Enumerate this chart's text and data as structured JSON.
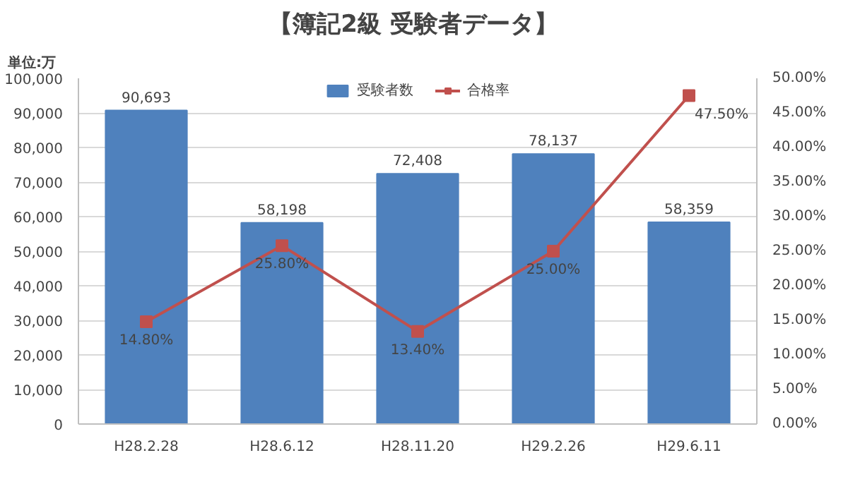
{
  "chart_data": {
    "type": "bar",
    "title": "【簿記2級  受験者データ】",
    "ylabel": "単位:万",
    "categories": [
      "H28.2.28",
      "H28.6.12",
      "H28.11.20",
      "H29.2.26",
      "H29.6.11"
    ],
    "series": [
      {
        "name": "受験者数",
        "color": "#4f81bd",
        "values": [
          90693,
          58198,
          72408,
          78137,
          58359
        ],
        "value_labels": [
          "90,693",
          "58,198",
          "72,408",
          "78,137",
          "58,359"
        ]
      },
      {
        "name": "合格率",
        "type": "line",
        "axis": "y2",
        "color": "#c0504d",
        "marker": "square",
        "values": [
          14.8,
          25.8,
          13.4,
          25.0,
          47.5
        ],
        "value_labels": [
          "14.80%",
          "25.80%",
          "13.40%",
          "25.00%",
          "47.50%"
        ]
      }
    ],
    "ylim": [
      0,
      100000
    ],
    "yticks": [
      {
        "value": 0,
        "label": "0"
      },
      {
        "value": 10000,
        "label": "10,000"
      },
      {
        "value": 20000,
        "label": "20,000"
      },
      {
        "value": 30000,
        "label": "30,000"
      },
      {
        "value": 40000,
        "label": "40,000"
      },
      {
        "value": 50000,
        "label": "50,000"
      },
      {
        "value": 60000,
        "label": "60,000"
      },
      {
        "value": 70000,
        "label": "70,000"
      },
      {
        "value": 80000,
        "label": "80,000"
      },
      {
        "value": 90000,
        "label": "90,000"
      },
      {
        "value": 100000,
        "label": "100,000"
      }
    ],
    "y2lim": [
      0,
      50
    ],
    "y2ticks": [
      {
        "value": 0,
        "label": "0.00%"
      },
      {
        "value": 5,
        "label": "5.00%"
      },
      {
        "value": 10,
        "label": "10.00%"
      },
      {
        "value": 15,
        "label": "15.00%"
      },
      {
        "value": 20,
        "label": "20.00%"
      },
      {
        "value": 25,
        "label": "25.00%"
      },
      {
        "value": 30,
        "label": "30.00%"
      },
      {
        "value": 35,
        "label": "35.00%"
      },
      {
        "value": 40,
        "label": "40.00%"
      },
      {
        "value": 45,
        "label": "45.00%"
      },
      {
        "value": 50,
        "label": "50.00%"
      }
    ],
    "grid": "y",
    "legend": "top"
  }
}
